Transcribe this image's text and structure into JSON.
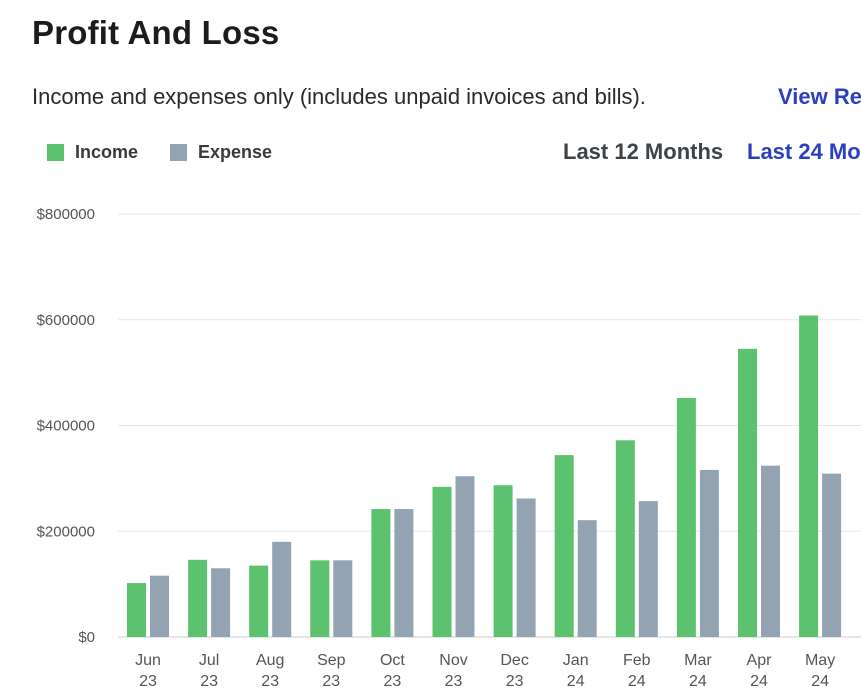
{
  "header": {
    "title": "Profit And Loss",
    "subtitle": "Income and expenses only (includes unpaid invoices and bills).",
    "view_link": "View Re"
  },
  "legend": {
    "income_label": "Income",
    "expense_label": "Expense"
  },
  "ranges": {
    "current": "Last 12 Months",
    "alternate": "Last 24 Mo"
  },
  "colors": {
    "income": "#5dc26f",
    "expense": "#94a3b2",
    "grid": "#e5e7ea",
    "link": "#2b3fbf"
  },
  "chart_data": {
    "type": "bar",
    "title": "Profit And Loss",
    "xlabel": "",
    "ylabel": "",
    "ylim": [
      0,
      800000
    ],
    "yticks": [
      0,
      200000,
      400000,
      600000,
      800000
    ],
    "ytick_labels": [
      "$0",
      "$200000",
      "$400000",
      "$600000",
      "$800000"
    ],
    "categories": [
      [
        "Jun",
        "23"
      ],
      [
        "Jul",
        "23"
      ],
      [
        "Aug",
        "23"
      ],
      [
        "Sep",
        "23"
      ],
      [
        "Oct",
        "23"
      ],
      [
        "Nov",
        "23"
      ],
      [
        "Dec",
        "23"
      ],
      [
        "Jan",
        "24"
      ],
      [
        "Feb",
        "24"
      ],
      [
        "Mar",
        "24"
      ],
      [
        "Apr",
        "24"
      ],
      [
        "May",
        "24"
      ]
    ],
    "series": [
      {
        "name": "Income",
        "values": [
          102000,
          146000,
          135000,
          145000,
          242000,
          284000,
          287000,
          344000,
          372000,
          452000,
          545000,
          608000
        ]
      },
      {
        "name": "Expense",
        "values": [
          116000,
          130000,
          180000,
          145000,
          242000,
          304000,
          262000,
          221000,
          257000,
          316000,
          324000,
          309000
        ]
      }
    ],
    "grid": true,
    "legend_position": "top-left"
  }
}
